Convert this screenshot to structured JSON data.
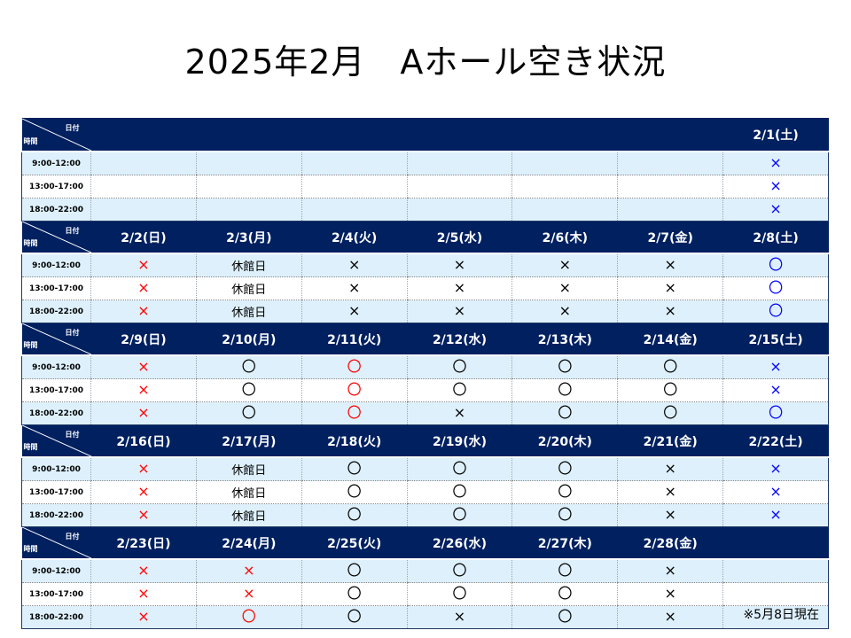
{
  "title": "2025年2月　Aホール空き状況",
  "footnote": "※5月8日現在",
  "corner": {
    "date_label": "日付",
    "time_label": "時間"
  },
  "slots": [
    "9:00-12:00",
    "13:00-17:00",
    "18:00-22:00"
  ],
  "colors": {
    "header_bg": "#002060",
    "row_light": "#ddf0fb",
    "red": "#ff0000",
    "blue": "#0000ff"
  },
  "weeks": [
    {
      "days": [
        "",
        "",
        "",
        "",
        "",
        "",
        "2/1(土)"
      ],
      "rows": [
        [
          [
            "",
            ""
          ],
          [
            "",
            ""
          ],
          [
            "",
            ""
          ],
          [
            "",
            ""
          ],
          [
            "",
            ""
          ],
          [
            "",
            ""
          ],
          [
            "×",
            "blue"
          ]
        ],
        [
          [
            "",
            ""
          ],
          [
            "",
            ""
          ],
          [
            "",
            ""
          ],
          [
            "",
            ""
          ],
          [
            "",
            ""
          ],
          [
            "",
            ""
          ],
          [
            "×",
            "blue"
          ]
        ],
        [
          [
            "",
            ""
          ],
          [
            "",
            ""
          ],
          [
            "",
            ""
          ],
          [
            "",
            ""
          ],
          [
            "",
            ""
          ],
          [
            "",
            ""
          ],
          [
            "×",
            "blue"
          ]
        ]
      ]
    },
    {
      "days": [
        "2/2(日)",
        "2/3(月)",
        "2/4(火)",
        "2/5(水)",
        "2/6(木)",
        "2/7(金)",
        "2/8(土)"
      ],
      "rows": [
        [
          [
            "×",
            "red"
          ],
          [
            "休館日",
            "text"
          ],
          [
            "×",
            "black"
          ],
          [
            "×",
            "black"
          ],
          [
            "×",
            "black"
          ],
          [
            "×",
            "black"
          ],
          [
            "〇",
            "blue"
          ]
        ],
        [
          [
            "×",
            "red"
          ],
          [
            "休館日",
            "text"
          ],
          [
            "×",
            "black"
          ],
          [
            "×",
            "black"
          ],
          [
            "×",
            "black"
          ],
          [
            "×",
            "black"
          ],
          [
            "〇",
            "blue"
          ]
        ],
        [
          [
            "×",
            "red"
          ],
          [
            "休館日",
            "text"
          ],
          [
            "×",
            "black"
          ],
          [
            "×",
            "black"
          ],
          [
            "×",
            "black"
          ],
          [
            "×",
            "black"
          ],
          [
            "〇",
            "blue"
          ]
        ]
      ]
    },
    {
      "days": [
        "2/9(日)",
        "2/10(月)",
        "2/11(火)",
        "2/12(水)",
        "2/13(木)",
        "2/14(金)",
        "2/15(土)"
      ],
      "rows": [
        [
          [
            "×",
            "red"
          ],
          [
            "〇",
            "black"
          ],
          [
            "〇",
            "red"
          ],
          [
            "〇",
            "black"
          ],
          [
            "〇",
            "black"
          ],
          [
            "〇",
            "black"
          ],
          [
            "×",
            "blue"
          ]
        ],
        [
          [
            "×",
            "red"
          ],
          [
            "〇",
            "black"
          ],
          [
            "〇",
            "red"
          ],
          [
            "〇",
            "black"
          ],
          [
            "〇",
            "black"
          ],
          [
            "〇",
            "black"
          ],
          [
            "×",
            "blue"
          ]
        ],
        [
          [
            "×",
            "red"
          ],
          [
            "〇",
            "black"
          ],
          [
            "〇",
            "red"
          ],
          [
            "×",
            "black"
          ],
          [
            "〇",
            "black"
          ],
          [
            "〇",
            "black"
          ],
          [
            "〇",
            "blue"
          ]
        ]
      ]
    },
    {
      "days": [
        "2/16(日)",
        "2/17(月)",
        "2/18(火)",
        "2/19(水)",
        "2/20(木)",
        "2/21(金)",
        "2/22(土)"
      ],
      "rows": [
        [
          [
            "×",
            "red"
          ],
          [
            "休館日",
            "text"
          ],
          [
            "〇",
            "black"
          ],
          [
            "〇",
            "black"
          ],
          [
            "〇",
            "black"
          ],
          [
            "×",
            "black"
          ],
          [
            "×",
            "blue"
          ]
        ],
        [
          [
            "×",
            "red"
          ],
          [
            "休館日",
            "text"
          ],
          [
            "〇",
            "black"
          ],
          [
            "〇",
            "black"
          ],
          [
            "〇",
            "black"
          ],
          [
            "×",
            "black"
          ],
          [
            "×",
            "blue"
          ]
        ],
        [
          [
            "×",
            "red"
          ],
          [
            "休館日",
            "text"
          ],
          [
            "〇",
            "black"
          ],
          [
            "〇",
            "black"
          ],
          [
            "〇",
            "black"
          ],
          [
            "×",
            "black"
          ],
          [
            "×",
            "blue"
          ]
        ]
      ]
    },
    {
      "days": [
        "2/23(日)",
        "2/24(月)",
        "2/25(火)",
        "2/26(水)",
        "2/27(木)",
        "2/28(金)",
        ""
      ],
      "rows": [
        [
          [
            "×",
            "red"
          ],
          [
            "×",
            "red"
          ],
          [
            "〇",
            "black"
          ],
          [
            "〇",
            "black"
          ],
          [
            "〇",
            "black"
          ],
          [
            "×",
            "black"
          ],
          [
            "",
            ""
          ]
        ],
        [
          [
            "×",
            "red"
          ],
          [
            "×",
            "red"
          ],
          [
            "〇",
            "black"
          ],
          [
            "〇",
            "black"
          ],
          [
            "〇",
            "black"
          ],
          [
            "×",
            "black"
          ],
          [
            "",
            ""
          ]
        ],
        [
          [
            "×",
            "red"
          ],
          [
            "〇",
            "red"
          ],
          [
            "〇",
            "black"
          ],
          [
            "×",
            "black"
          ],
          [
            "〇",
            "black"
          ],
          [
            "×",
            "black"
          ],
          [
            "",
            ""
          ]
        ]
      ]
    }
  ]
}
